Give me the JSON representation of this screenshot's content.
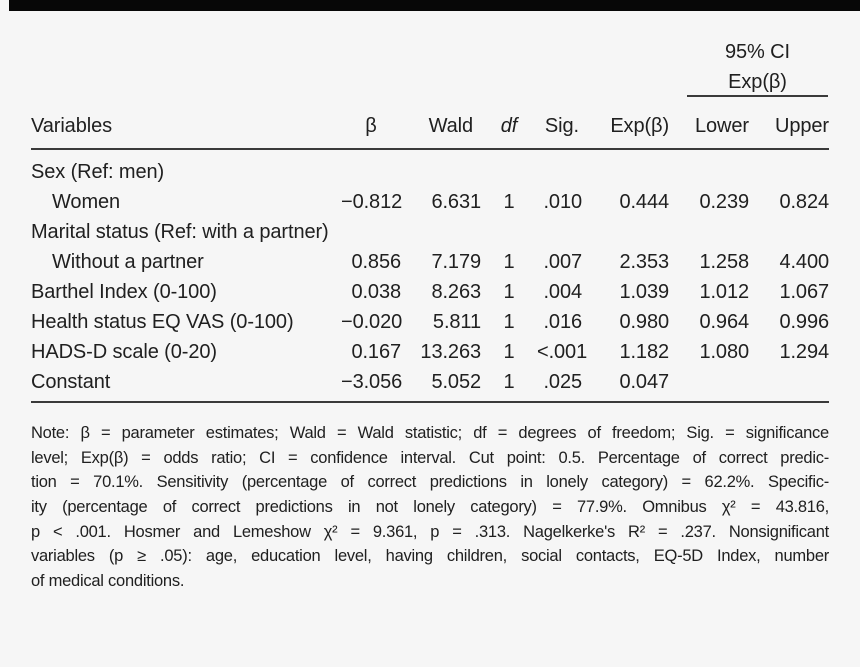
{
  "page": {
    "background": "#f6f6f6",
    "text_color": "#202020",
    "rule_color": "#3a3a3a",
    "top_bar_color": "#070707"
  },
  "table": {
    "ci_spanner": {
      "line1": "95% CI",
      "line2": "Exp(β)"
    },
    "columns": [
      "Variables",
      "β",
      "Wald",
      "df",
      "Sig.",
      "Exp(β)",
      "Lower",
      "Upper"
    ],
    "rows": [
      {
        "label": "Sex (Ref: men)",
        "indent": false,
        "values": [
          "",
          "",
          "",
          "",
          "",
          "",
          ""
        ]
      },
      {
        "label": "Women",
        "indent": true,
        "values": [
          "−0.812",
          "6.631",
          "1",
          ".010",
          "0.444",
          "0.239",
          "0.824"
        ]
      },
      {
        "label": "Marital status (Ref: with a partner)",
        "indent": false,
        "values": [
          "",
          "",
          "",
          "",
          "",
          "",
          ""
        ]
      },
      {
        "label": "Without a partner",
        "indent": true,
        "values": [
          "0.856",
          "7.179",
          "1",
          ".007",
          "2.353",
          "1.258",
          "4.400"
        ]
      },
      {
        "label": "Barthel Index (0-100)",
        "indent": false,
        "values": [
          "0.038",
          "8.263",
          "1",
          ".004",
          "1.039",
          "1.012",
          "1.067"
        ]
      },
      {
        "label": "Health status EQ VAS (0-100)",
        "indent": false,
        "values": [
          "−0.020",
          "5.811",
          "1",
          ".016",
          "0.980",
          "0.964",
          "0.996"
        ]
      },
      {
        "label": "HADS-D scale (0-20)",
        "indent": false,
        "values": [
          "0.167",
          "13.263",
          "1",
          "<.001",
          "1.182",
          "1.080",
          "1.294"
        ]
      },
      {
        "label": "Constant",
        "indent": false,
        "values": [
          "−3.056",
          "5.052",
          "1",
          ".025",
          "0.047",
          "",
          ""
        ]
      }
    ]
  },
  "note": {
    "lines": [
      "Note: β = parameter estimates; Wald = Wald statistic; df = degrees of freedom; Sig. = significance",
      "level; Exp(β) = odds ratio; CI = confidence interval. Cut point: 0.5. Percentage of correct predic-",
      "tion = 70.1%. Sensitivity (percentage of correct predictions in lonely category) = 62.2%. Specific-",
      "ity (percentage of correct predictions in not lonely category) = 77.9%. Omnibus χ² = 43.816,",
      "p < .001. Hosmer and Lemeshow χ² = 9.361, p = .313. Nagelkerke's R² = .237. Nonsignificant",
      "variables (p ≥ .05): age, education level, having children, social contacts, EQ-5D Index, number",
      "of medical conditions."
    ]
  }
}
